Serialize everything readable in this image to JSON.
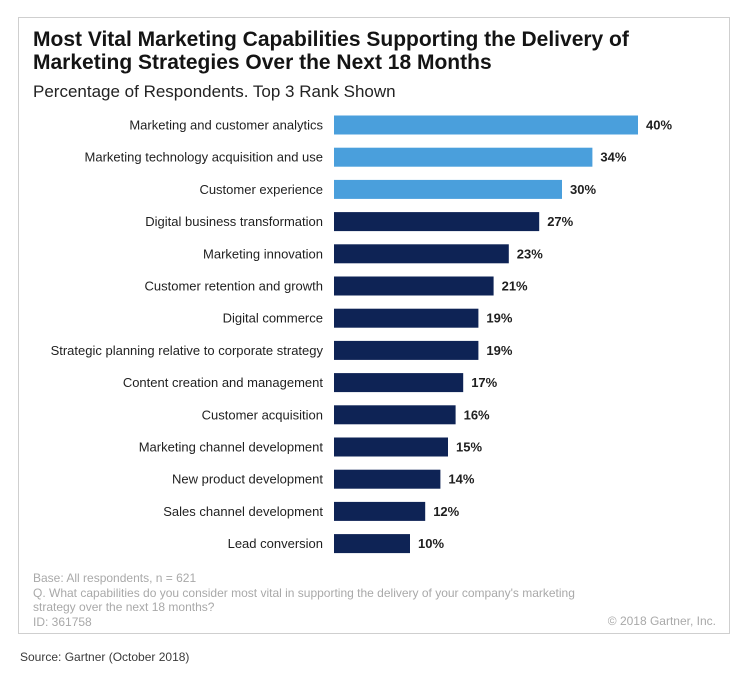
{
  "header": {
    "title": "Most Vital Marketing Capabilities Supporting the Delivery of Marketing Strategies Over the Next 18 Months",
    "subtitle": "Percentage of Respondents. Top 3 Rank Shown"
  },
  "chart_data": {
    "type": "bar",
    "orientation": "horizontal",
    "title": "Most Vital Marketing Capabilities Supporting the Delivery of Marketing Strategies Over the Next 18 Months",
    "subtitle": "Percentage of Respondents. Top 3 Rank Shown",
    "categories": [
      "Marketing and customer analytics",
      "Marketing technology acquisition and use",
      "Customer experience",
      "Digital business transformation",
      "Marketing innovation",
      "Customer retention and growth",
      "Digital commerce",
      "Strategic planning relative to corporate strategy",
      "Content creation and management",
      "Customer acquisition",
      "Marketing channel development",
      "New product development",
      "Sales channel development",
      "Lead conversion"
    ],
    "values": [
      40,
      34,
      30,
      27,
      23,
      21,
      19,
      19,
      17,
      16,
      15,
      14,
      12,
      10
    ],
    "value_labels": [
      "40%",
      "34%",
      "30%",
      "27%",
      "23%",
      "21%",
      "19%",
      "19%",
      "17%",
      "16%",
      "15%",
      "14%",
      "12%",
      "10%"
    ],
    "xlim": [
      0,
      40
    ],
    "highlight_count": 3,
    "colors": {
      "highlight": "#4a9fdc",
      "default": "#0e2355"
    },
    "grid": false,
    "xlabel": "",
    "ylabel": ""
  },
  "footer": {
    "base": "Base: All respondents, n = 621",
    "question": "Q. What capabilities do you consider most vital in supporting the delivery of your company's marketing strategy over the next 18 months?",
    "id": "ID: 361758",
    "copyright": "© 2018 Gartner, Inc.",
    "source": "Source: Gartner (October 2018)"
  }
}
